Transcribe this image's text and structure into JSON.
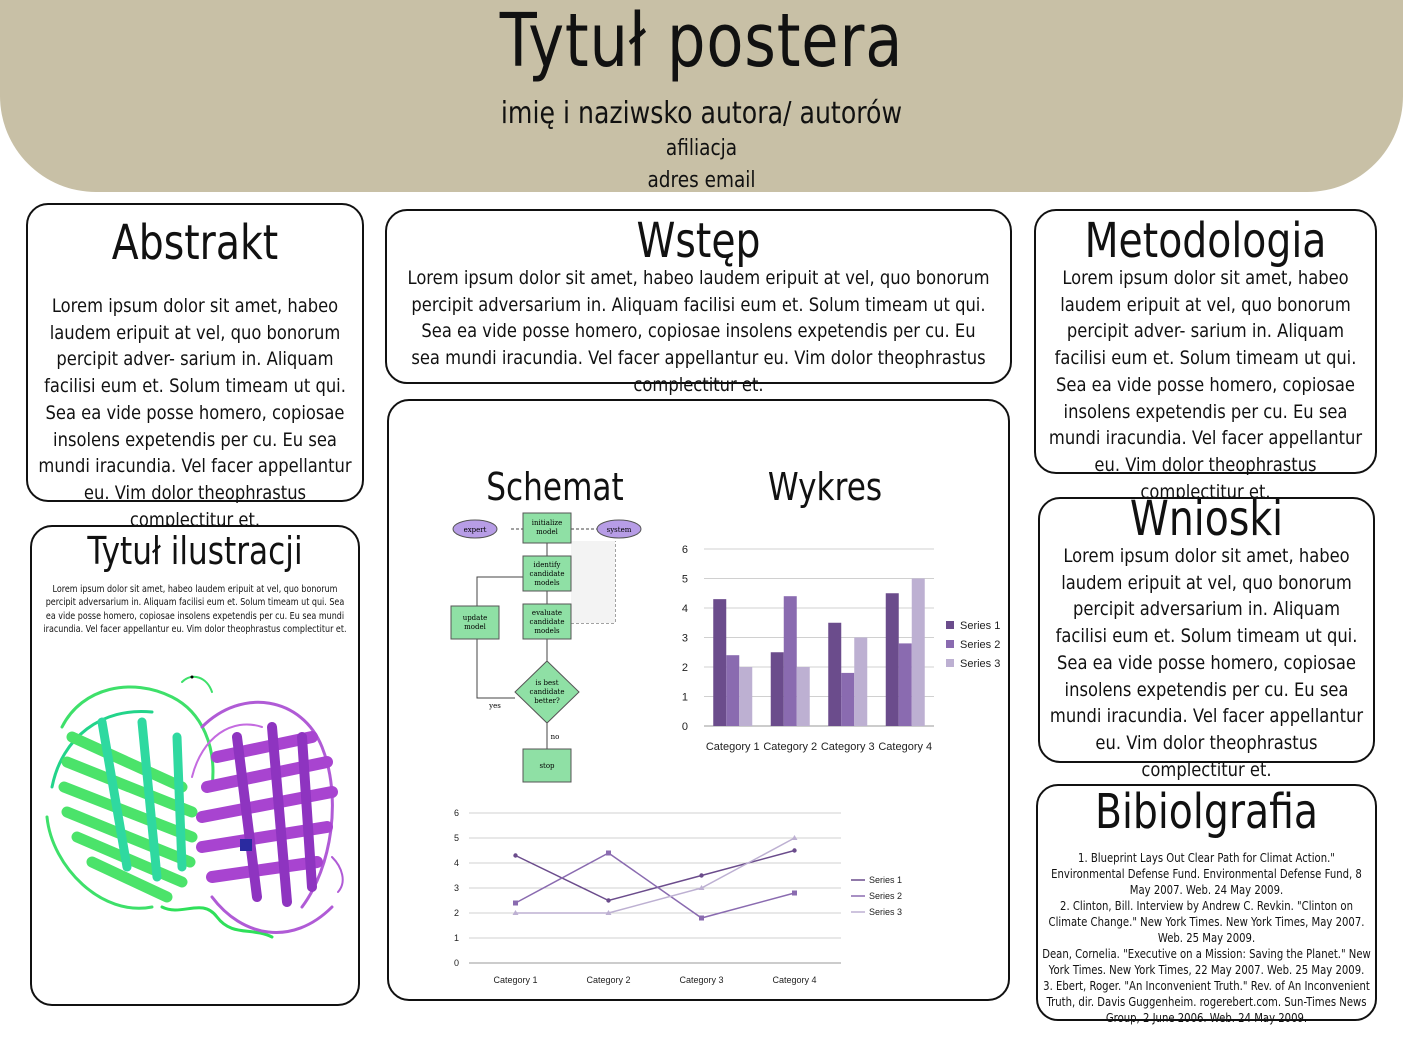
{
  "header": {
    "title": "Tytuł postera",
    "authors": "imię i naziwsko autora/ autorów",
    "affiliation": "afiliacja",
    "email": "adres email",
    "background_color": "#c8c0a6"
  },
  "abstrakt": {
    "heading": "Abstrakt",
    "text": "Lorem ipsum dolor sit amet, habeo laudem eripuit at vel, quo bonorum percipit adver- sarium in. Aliquam facilisi eum et. Solum timeam ut qui. Sea ea vide posse homero, copiosae insolens expetendis per cu. Eu sea mundi iracundia. Vel facer appellantur eu. Vim dolor theophrastus complectitur et."
  },
  "wstep": {
    "heading": "Wstęp",
    "text": "Lorem ipsum dolor sit amet, habeo laudem eripuit at vel, quo bonorum percipit adversarium in. Aliquam facilisi eum et. Solum timeam ut qui. Sea ea vide posse homero, copiosae insolens expetendis per cu. Eu sea mundi iracundia. Vel facer appellantur eu. Vim dolor theophrastus complectitur et."
  },
  "metodologia": {
    "heading": "Metodologia",
    "text": "Lorem ipsum dolor sit amet, habeo laudem eripuit at vel, quo bonorum percipit adver- sarium in. Aliquam facilisi eum et. Solum timeam ut qui. Sea ea vide posse homero, copiosae insolens expetendis per cu. Eu sea mundi iracundia. Vel facer appellantur eu. Vim dolor theophrastus complectitur et."
  },
  "wnioski": {
    "heading": "Wnioski",
    "text": "Lorem ipsum dolor sit amet, habeo laudem eripuit at vel, quo bonorum percipit adversarium in. Aliquam facilisi eum et. Solum timeam ut qui. Sea ea vide posse homero, copiosae insolens expetendis per cu. Eu sea mundi iracundia. Vel facer appellantur eu. Vim dolor theophrastus complectitur et."
  },
  "bibliografia": {
    "heading": "Bibiolgrafia",
    "refs": [
      "1. Blueprint Lays Out Clear Path for Climat Action.\" Environmental Defense Fund. Environmental Defense Fund, 8 May 2007. Web. 24 May 2009.",
      "2. Clinton, Bill. Interview by Andrew C. Revkin. \"Clinton on Climate Change.\" New York Times. New York Times, May 2007. Web. 25 May 2009.",
      "Dean, Cornelia. \"Executive on a Mission: Saving the Planet.\" New York Times. New York Times, 22 May 2007. Web. 25 May 2009.",
      "3. Ebert, Roger. \"An Inconvenient Truth.\" Rev. of An Inconvenient Truth, dir. Davis Guggenheim. rogerebert.com. Sun-Times News Group, 2 June 2006. Web. 24 May 2009."
    ]
  },
  "ilustracja": {
    "heading": "Tytuł ilustracji",
    "text": "Lorem ipsum dolor sit amet, habeo laudem eripuit at vel, quo bonorum percipit adversarium in. Aliquam facilisi eum et. Solum timeam ut qui. Sea ea vide posse homero, copiosae insolens expetendis per cu. Eu sea mundi iracundia. Vel facer appellantur eu. Vim dolor theophrastus complectitur et."
  },
  "center": {
    "schemat_heading": "Schemat",
    "wykres_heading": "Wykres"
  },
  "flowchart": {
    "nodes": {
      "expert": "expert",
      "system": "system",
      "init": [
        "initialize",
        "model"
      ],
      "identify": [
        "identify",
        "candidate",
        "models"
      ],
      "evaluate": [
        "evaluate",
        "candidate",
        "models"
      ],
      "update": [
        "update",
        "model"
      ],
      "best": [
        "is best",
        "candidate",
        "better?"
      ],
      "stop": "stop",
      "yes": "yes",
      "no": "no"
    },
    "colors": {
      "box": "#8fe0a5",
      "ellipse": "#b79de6"
    }
  },
  "chart_data": [
    {
      "type": "bar",
      "categories": [
        "Category 1",
        "Category 2",
        "Category 3",
        "Category 4"
      ],
      "series": [
        {
          "name": "Series 1",
          "values": [
            4.3,
            2.5,
            3.5,
            4.5
          ],
          "color": "#6b4c8c"
        },
        {
          "name": "Series 2",
          "values": [
            2.4,
            4.4,
            1.8,
            2.8
          ],
          "color": "#8a6bb0"
        },
        {
          "name": "Series 3",
          "values": [
            2.0,
            2.0,
            3.0,
            5.0
          ],
          "color": "#bdb0d2"
        }
      ],
      "yticks": [
        "0",
        "1",
        "2",
        "3",
        "4",
        "5",
        "6"
      ],
      "ylim": [
        0,
        6
      ],
      "grid": true,
      "legend": "right"
    },
    {
      "type": "line",
      "categories": [
        "Category 1",
        "Category 2",
        "Category 3",
        "Category 4"
      ],
      "series": [
        {
          "name": "Series 1",
          "values": [
            4.3,
            2.5,
            3.5,
            4.5
          ],
          "color": "#6b4c8c"
        },
        {
          "name": "Series 2",
          "values": [
            2.4,
            4.4,
            1.8,
            2.8
          ],
          "color": "#8a6bb0"
        },
        {
          "name": "Series 3",
          "values": [
            2.0,
            2.0,
            3.0,
            5.0
          ],
          "color": "#bdb0d2"
        }
      ],
      "yticks": [
        "0",
        "1",
        "2",
        "3",
        "4",
        "5",
        "6"
      ],
      "ylim": [
        0,
        6
      ],
      "grid": true,
      "legend": "right"
    }
  ]
}
